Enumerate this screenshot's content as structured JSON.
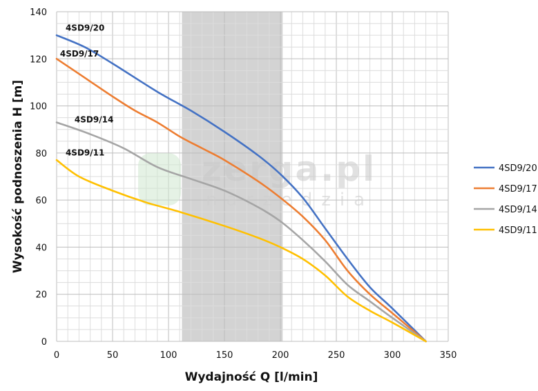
{
  "chart_data": {
    "type": "line",
    "xlabel": "Wydajność Q [l/min]",
    "ylabel": "Wysokość podnoszenia H [m]",
    "xlim": [
      0,
      350
    ],
    "ylim": [
      0,
      140
    ],
    "x_ticks": [
      0,
      50,
      100,
      150,
      200,
      250,
      300,
      350
    ],
    "y_ticks": [
      0,
      20,
      40,
      60,
      80,
      100,
      120,
      140
    ],
    "grid": true,
    "legend_position": "right",
    "highlight_band": {
      "x_from": 112,
      "x_to": 202,
      "color": "#d3d3d3"
    },
    "series": [
      {
        "name": "4SD9/20",
        "color": "#4472C4",
        "x": [
          0,
          25,
          50,
          90,
          120,
          150,
          180,
          200,
          220,
          240,
          260,
          280,
          300,
          330
        ],
        "y": [
          130,
          125,
          118,
          106,
          98,
          89,
          79,
          71,
          61,
          48,
          35,
          23,
          14,
          0
        ]
      },
      {
        "name": "4SD9/17",
        "color": "#ED7D31",
        "x": [
          0,
          25,
          50,
          70,
          90,
          110,
          130,
          150,
          180,
          200,
          220,
          240,
          260,
          280,
          300,
          330
        ],
        "y": [
          120,
          112,
          104,
          98,
          93,
          87,
          82,
          77,
          68,
          61,
          53,
          43,
          30,
          20,
          12,
          0
        ]
      },
      {
        "name": "4SD9/14",
        "color": "#A5A5A5",
        "x": [
          0,
          30,
          60,
          90,
          120,
          150,
          180,
          200,
          220,
          240,
          260,
          280,
          300,
          330
        ],
        "y": [
          93,
          88,
          82,
          74,
          69,
          64,
          57,
          51,
          43,
          34,
          24,
          17,
          10,
          0
        ]
      },
      {
        "name": "4SD9/11",
        "color": "#FFC000",
        "x": [
          0,
          20,
          50,
          80,
          110,
          150,
          180,
          200,
          220,
          240,
          260,
          280,
          300,
          330
        ],
        "y": [
          77,
          70,
          64,
          59,
          55,
          49,
          44,
          40,
          35,
          28,
          19,
          13,
          8,
          0
        ]
      }
    ],
    "series_labels": [
      {
        "text": "4SD9/20",
        "x": 8,
        "y": 132
      },
      {
        "text": "4SD9/17",
        "x": 3,
        "y": 121
      },
      {
        "text": "4SD9/14",
        "x": 16,
        "y": 93
      },
      {
        "text": "4SD9/11",
        "x": 8,
        "y": 79
      }
    ]
  },
  "watermark": {
    "brand": "zerga.pl",
    "tagline": "narzedzia"
  }
}
